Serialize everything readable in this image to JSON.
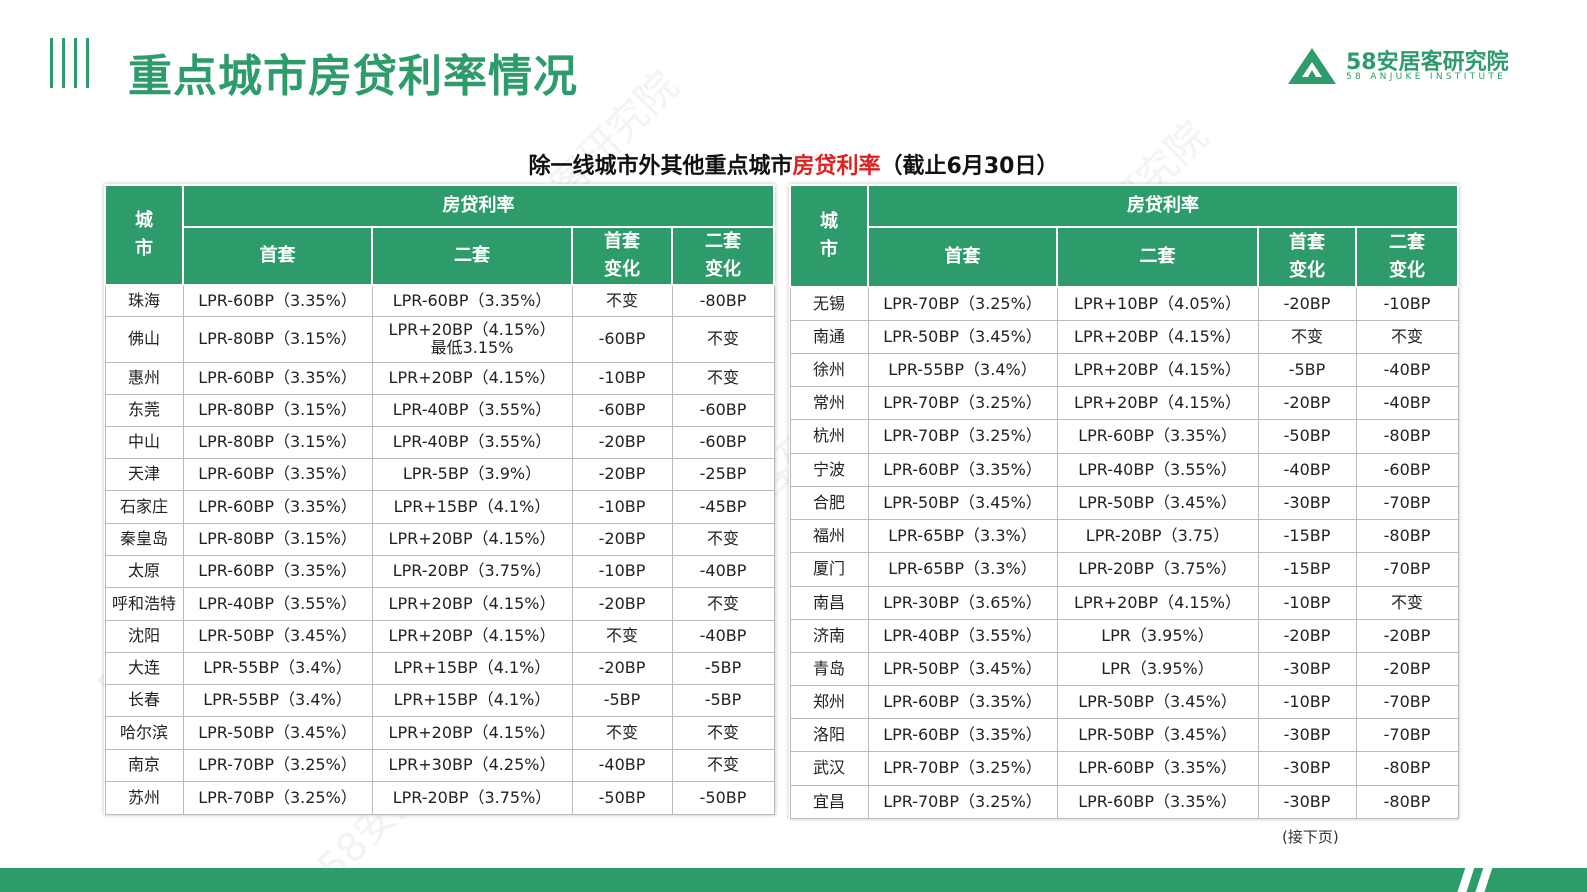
{
  "header": {
    "title": "重点城市房贷利率情况",
    "logo_cn": "58安居客研究院",
    "logo_en": "58 ANJUKE INSTITUTE"
  },
  "subtitle": {
    "part1": "除一线城市外其他重点城市",
    "part2": "房贷利率",
    "part3": "（截止6月30日）"
  },
  "colors": {
    "brand": "#2e9b6b",
    "highlight": "#e02020"
  },
  "columns": {
    "city": "城\n市",
    "group": "房贷利率",
    "first": "首套",
    "second": "二套",
    "first_change": "首套\n变化",
    "second_change": "二套\n变化"
  },
  "left_table": [
    {
      "city": "珠海",
      "first": "LPR-60BP（3.35%）",
      "second": "LPR-60BP（3.35%）",
      "first_change": "不变",
      "second_change": "-80BP"
    },
    {
      "city": "佛山",
      "first": "LPR-80BP（3.15%）",
      "second": "LPR+20BP（4.15%）\n最低3.15%",
      "first_change": "-60BP",
      "second_change": "不变"
    },
    {
      "city": "惠州",
      "first": "LPR-60BP（3.35%）",
      "second": "LPR+20BP（4.15%）",
      "first_change": "-10BP",
      "second_change": "不变"
    },
    {
      "city": "东莞",
      "first": "LPR-80BP（3.15%）",
      "second": "LPR-40BP（3.55%）",
      "first_change": "-60BP",
      "second_change": "-60BP"
    },
    {
      "city": "中山",
      "first": "LPR-80BP（3.15%）",
      "second": "LPR-40BP（3.55%）",
      "first_change": "-20BP",
      "second_change": "-60BP"
    },
    {
      "city": "天津",
      "first": "LPR-60BP（3.35%）",
      "second": "LPR-5BP（3.9%）",
      "first_change": "-20BP",
      "second_change": "-25BP"
    },
    {
      "city": "石家庄",
      "first": "LPR-60BP（3.35%）",
      "second": "LPR+15BP（4.1%）",
      "first_change": "-10BP",
      "second_change": "-45BP"
    },
    {
      "city": "秦皇岛",
      "first": "LPR-80BP（3.15%）",
      "second": "LPR+20BP（4.15%）",
      "first_change": "-20BP",
      "second_change": "不变"
    },
    {
      "city": "太原",
      "first": "LPR-60BP（3.35%）",
      "second": "LPR-20BP（3.75%）",
      "first_change": "-10BP",
      "second_change": "-40BP"
    },
    {
      "city": "呼和浩特",
      "first": "LPR-40BP（3.55%）",
      "second": "LPR+20BP（4.15%）",
      "first_change": "-20BP",
      "second_change": "不变"
    },
    {
      "city": "沈阳",
      "first": "LPR-50BP（3.45%）",
      "second": "LPR+20BP（4.15%）",
      "first_change": "不变",
      "second_change": "-40BP"
    },
    {
      "city": "大连",
      "first": "LPR-55BP（3.4%）",
      "second": "LPR+15BP（4.1%）",
      "first_change": "-20BP",
      "second_change": "-5BP"
    },
    {
      "city": "长春",
      "first": "LPR-55BP（3.4%）",
      "second": "LPR+15BP（4.1%）",
      "first_change": "-5BP",
      "second_change": "-5BP"
    },
    {
      "city": "哈尔滨",
      "first": "LPR-50BP（3.45%）",
      "second": "LPR+20BP（4.15%）",
      "first_change": "不变",
      "second_change": "不变"
    },
    {
      "city": "南京",
      "first": "LPR-70BP（3.25%）",
      "second": "LPR+30BP（4.25%）",
      "first_change": "-40BP",
      "second_change": "不变"
    },
    {
      "city": "苏州",
      "first": "LPR-70BP（3.25%）",
      "second": "LPR-20BP（3.75%）",
      "first_change": "-50BP",
      "second_change": "-50BP"
    }
  ],
  "right_table": [
    {
      "city": "无锡",
      "first": "LPR-70BP（3.25%）",
      "second": "LPR+10BP（4.05%）",
      "first_change": "-20BP",
      "second_change": "-10BP"
    },
    {
      "city": "南通",
      "first": "LPR-50BP（3.45%）",
      "second": "LPR+20BP（4.15%）",
      "first_change": "不变",
      "second_change": "不变"
    },
    {
      "city": "徐州",
      "first": "LPR-55BP（3.4%）",
      "second": "LPR+20BP（4.15%）",
      "first_change": "-5BP",
      "second_change": "-40BP"
    },
    {
      "city": "常州",
      "first": "LPR-70BP（3.25%）",
      "second": "LPR+20BP（4.15%）",
      "first_change": "-20BP",
      "second_change": "-40BP"
    },
    {
      "city": "杭州",
      "first": "LPR-70BP（3.25%）",
      "second": "LPR-60BP（3.35%）",
      "first_change": "-50BP",
      "second_change": "-80BP"
    },
    {
      "city": "宁波",
      "first": "LPR-60BP（3.35%）",
      "second": "LPR-40BP（3.55%）",
      "first_change": "-40BP",
      "second_change": "-60BP"
    },
    {
      "city": "合肥",
      "first": "LPR-50BP（3.45%）",
      "second": "LPR-50BP（3.45%）",
      "first_change": "-30BP",
      "second_change": "-70BP"
    },
    {
      "city": "福州",
      "first": "LPR-65BP（3.3%）",
      "second": "LPR-20BP（3.75）",
      "first_change": "-15BP",
      "second_change": "-80BP"
    },
    {
      "city": "厦门",
      "first": "LPR-65BP（3.3%）",
      "second": "LPR-20BP（3.75%）",
      "first_change": "-15BP",
      "second_change": "-70BP"
    },
    {
      "city": "南昌",
      "first": "LPR-30BP（3.65%）",
      "second": "LPR+20BP（4.15%）",
      "first_change": "-10BP",
      "second_change": "不变"
    },
    {
      "city": "济南",
      "first": "LPR-40BP（3.55%）",
      "second": "LPR（3.95%）",
      "first_change": "-20BP",
      "second_change": "-20BP"
    },
    {
      "city": "青岛",
      "first": "LPR-50BP（3.45%）",
      "second": "LPR（3.95%）",
      "first_change": "-30BP",
      "second_change": "-20BP"
    },
    {
      "city": "郑州",
      "first": "LPR-60BP（3.35%）",
      "second": "LPR-50BP（3.45%）",
      "first_change": "-10BP",
      "second_change": "-70BP"
    },
    {
      "city": "洛阳",
      "first": "LPR-60BP（3.35%）",
      "second": "LPR-50BP（3.45%）",
      "first_change": "-30BP",
      "second_change": "-70BP"
    },
    {
      "city": "武汉",
      "first": "LPR-70BP（3.25%）",
      "second": "LPR-60BP（3.35%）",
      "first_change": "-30BP",
      "second_change": "-80BP"
    },
    {
      "city": "宜昌",
      "first": "LPR-70BP（3.25%）",
      "second": "LPR-60BP（3.35%）",
      "first_change": "-30BP",
      "second_change": "-80BP"
    }
  ],
  "footer": {
    "note": "(接下页)"
  },
  "watermark": "58安居客研究院"
}
